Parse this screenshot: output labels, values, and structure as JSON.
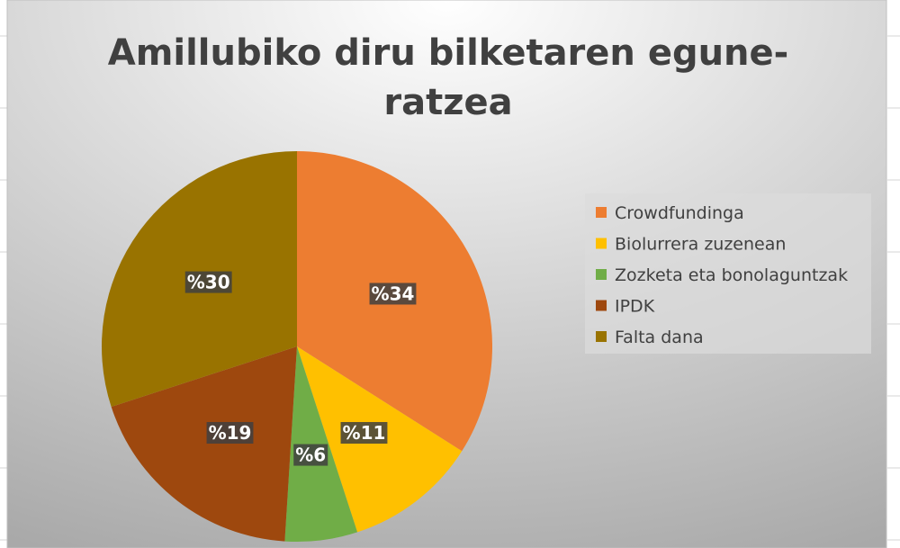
{
  "chart_data": {
    "type": "pie",
    "title": [
      "Amillubiko diru bilketaren egune-",
      "ratzea"
    ],
    "categories": [
      "Crowdfundinga",
      "Biolurrera zuzenean",
      "Zozketa eta bonolaguntzak",
      "IPDK",
      "Falta dana"
    ],
    "values": [
      34,
      11,
      6,
      19,
      30
    ],
    "value_labels": [
      "%34",
      "%11",
      "%6",
      "%19",
      "%30"
    ],
    "colors": [
      "#ED7D31",
      "#FFC000",
      "#70AD47",
      "#9E480E",
      "#997300"
    ],
    "legend": "right"
  }
}
